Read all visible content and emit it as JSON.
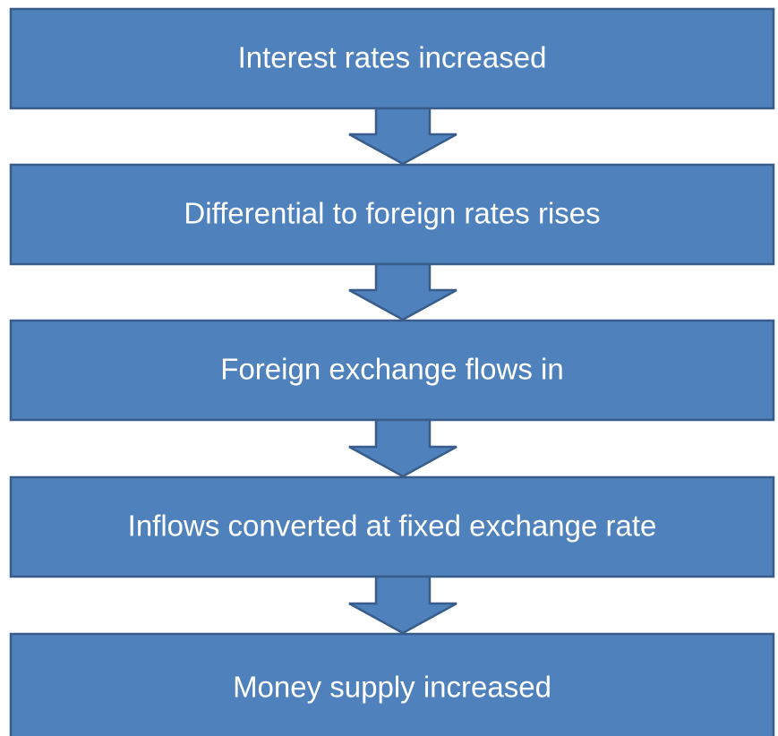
{
  "nodes": [
    {
      "label": "Interest rates increased"
    },
    {
      "label": "Differential to foreign rates rises"
    },
    {
      "label": "Foreign exchange flows in"
    },
    {
      "label": "Inflows converted at fixed exchange rate"
    },
    {
      "label": "Money supply increased"
    }
  ]
}
